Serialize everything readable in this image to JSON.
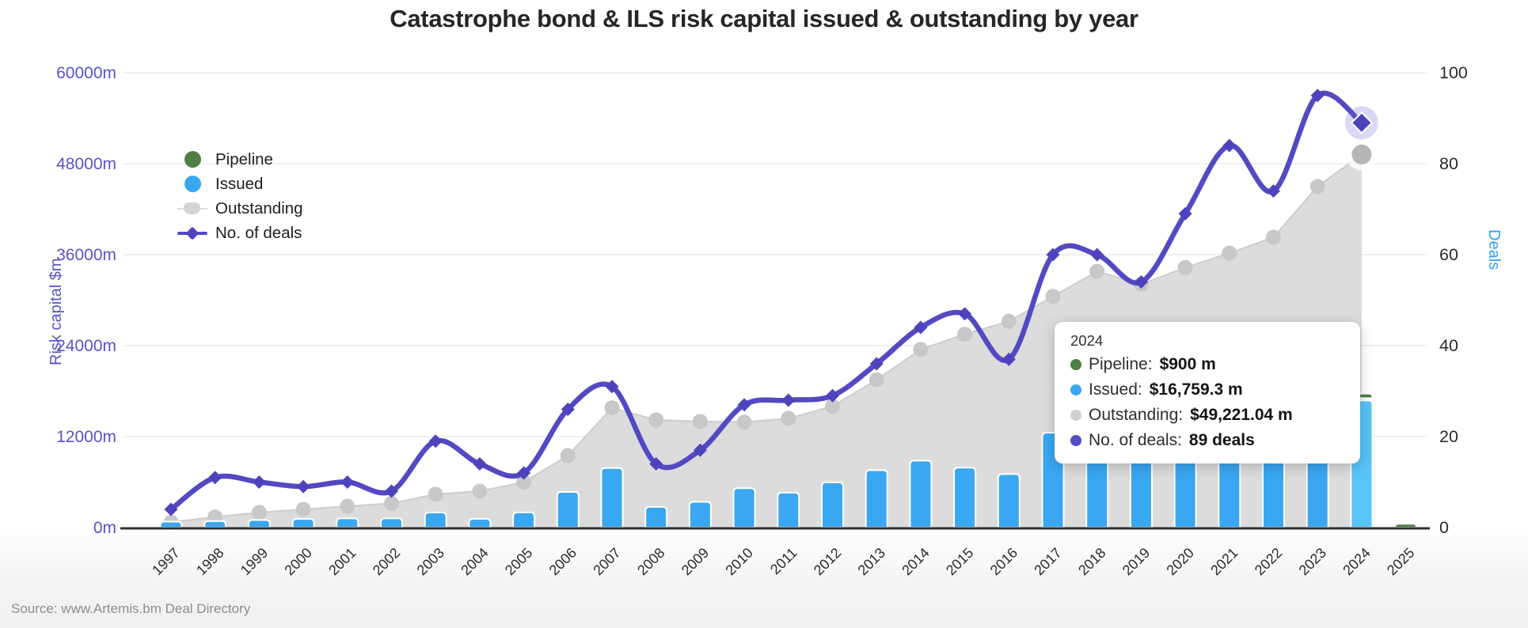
{
  "title": "Catastrophe bond & ILS risk capital issued & outstanding by year",
  "source": "Source: www.Artemis.bm Deal Directory",
  "legend": {
    "items": [
      {
        "label": "Pipeline",
        "color": "#4e7e43"
      },
      {
        "label": "Issued",
        "color": "#3aa7f2"
      },
      {
        "label": "Outstanding",
        "color": "#d3d3d5"
      },
      {
        "label": "No. of deals",
        "color": "#5349c2"
      }
    ]
  },
  "tooltip": {
    "year": "2024",
    "rows": [
      {
        "label": "Pipeline:",
        "value": "$900 m",
        "color": "#4e7e43"
      },
      {
        "label": "Issued:",
        "value": "$16,759.3 m",
        "color": "#3aa7f2"
      },
      {
        "label": "Outstanding:",
        "value": "$49,221.04 m",
        "color": "#d0d0d1"
      },
      {
        "label": "No. of deals:",
        "value": "89 deals",
        "color": "#544bc9"
      }
    ]
  },
  "axes": {
    "left": {
      "title": "Risk capital $m",
      "color": "#5a52c9",
      "ticks": [
        {
          "label": "60000m",
          "value": 60000
        },
        {
          "label": "48000m",
          "value": 48000
        },
        {
          "label": "36000m",
          "value": 36000
        },
        {
          "label": "24000m",
          "value": 24000
        },
        {
          "label": "12000m",
          "value": 12000
        },
        {
          "label": "0m",
          "value": 0
        }
      ]
    },
    "right": {
      "title": "Deals",
      "color": "#2ea0ef",
      "ticks": [
        {
          "label": "100",
          "value": 100
        },
        {
          "label": "80",
          "value": 80
        },
        {
          "label": "60",
          "value": 60
        },
        {
          "label": "40",
          "value": 40
        },
        {
          "label": "20",
          "value": 20
        },
        {
          "label": "0",
          "value": 0
        }
      ]
    }
  },
  "chart_data": {
    "type": "combo",
    "title": "Catastrophe bond & ILS risk capital issued & outstanding by year",
    "categories": [
      "1997",
      "1998",
      "1999",
      "2000",
      "2001",
      "2002",
      "2003",
      "2004",
      "2005",
      "2006",
      "2007",
      "2008",
      "2009",
      "2010",
      "2011",
      "2012",
      "2013",
      "2014",
      "2015",
      "2016",
      "2017",
      "2018",
      "2019",
      "2020",
      "2021",
      "2022",
      "2023",
      "2024",
      "2025"
    ],
    "highlight_category": "2024",
    "xlabel": "",
    "y_left": {
      "label": "Risk capital $m",
      "min": 0,
      "max": 60000,
      "grid_step": 12000
    },
    "y_right": {
      "label": "Deals",
      "min": 0,
      "max": 100,
      "grid_step": 20
    },
    "grid": "horizontal",
    "legend_position": "top-left-inside",
    "series": [
      {
        "name": "Pipeline",
        "type": "bar",
        "stack": "issuance",
        "color": "#4e7e43",
        "values": [
          0,
          0,
          0,
          0,
          0,
          0,
          0,
          0,
          0,
          0,
          0,
          0,
          0,
          0,
          0,
          0,
          0,
          0,
          0,
          0,
          0,
          0,
          0,
          0,
          0,
          0,
          0,
          900,
          500
        ]
      },
      {
        "name": "Issued",
        "type": "bar",
        "stack": "issuance",
        "color": "#3aa7f2",
        "highlight_color": "#58c4f7",
        "values": [
          785.5,
          846.1,
          984.8,
          1139,
          1219.5,
          1219.3,
          1988.2,
          1142.8,
          1991.1,
          4693.4,
          7853.3,
          2729.2,
          3392.1,
          5191.6,
          4599.6,
          5961,
          7564.4,
          8826.9,
          7907.3,
          7059.5,
          12510.3,
          13862.5,
          11108.1,
          16389.3,
          14160,
          10500,
          15600,
          16759.3,
          0
        ]
      },
      {
        "name": "Outstanding",
        "type": "area",
        "color": "#dcdcdd",
        "marker_color": "#c8c8ca",
        "values": [
          700,
          1400,
          2000,
          2400,
          2800,
          3200,
          4400,
          4800,
          6000,
          9500,
          15800,
          14200,
          14000,
          13900,
          14400,
          16000,
          19500,
          23500,
          25500,
          27200,
          30500,
          33800,
          32100,
          34300,
          36200,
          38300,
          45000,
          49221.04,
          null
        ]
      },
      {
        "name": "No. of deals",
        "type": "line",
        "axis": "right",
        "color": "#5349c2",
        "marker_color": "#4d44bd",
        "values": [
          4,
          11,
          10,
          9,
          10,
          8,
          19,
          14,
          12,
          26,
          31,
          14,
          17,
          27,
          28,
          29,
          36,
          44,
          47,
          37,
          60,
          60,
          54,
          69,
          84,
          74,
          95,
          89,
          null
        ]
      }
    ]
  }
}
